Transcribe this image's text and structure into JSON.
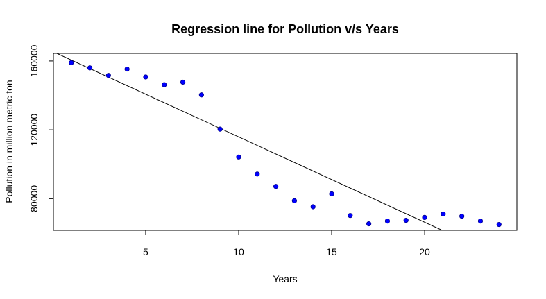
{
  "chart_data": {
    "type": "scatter",
    "title": "Regression line for Pollution v/s Years",
    "xlabel": "Years",
    "ylabel": "Pollution in million metric ton",
    "xlim": [
      0.04,
      24.96
    ],
    "ylim": [
      61600,
      164400
    ],
    "xticks": [
      5,
      10,
      15,
      20
    ],
    "xtick_labels": [
      "5",
      "10",
      "15",
      "20"
    ],
    "yticks": [
      80000,
      120000,
      160000
    ],
    "ytick_labels": [
      "80000",
      "120000",
      "160000"
    ],
    "grid": false,
    "legend": "none",
    "point_color": "#0000ff",
    "point_edge_color": "#00008b",
    "line_color": "#000000",
    "points": {
      "x": [
        1,
        2,
        3,
        4,
        5,
        6,
        7,
        8,
        9,
        10,
        11,
        12,
        13,
        14,
        15,
        16,
        17,
        18,
        19,
        20,
        21,
        22,
        23,
        24
      ],
      "y": [
        159000,
        156000,
        151600,
        155300,
        150700,
        146200,
        147700,
        140300,
        120400,
        104200,
        94300,
        87100,
        78800,
        75300,
        82800,
        70200,
        65400,
        67000,
        67400,
        69100,
        71100,
        69800,
        67000,
        65000
      ]
    },
    "regression_line": {
      "intercept": 165500,
      "slope": -4960
    }
  }
}
